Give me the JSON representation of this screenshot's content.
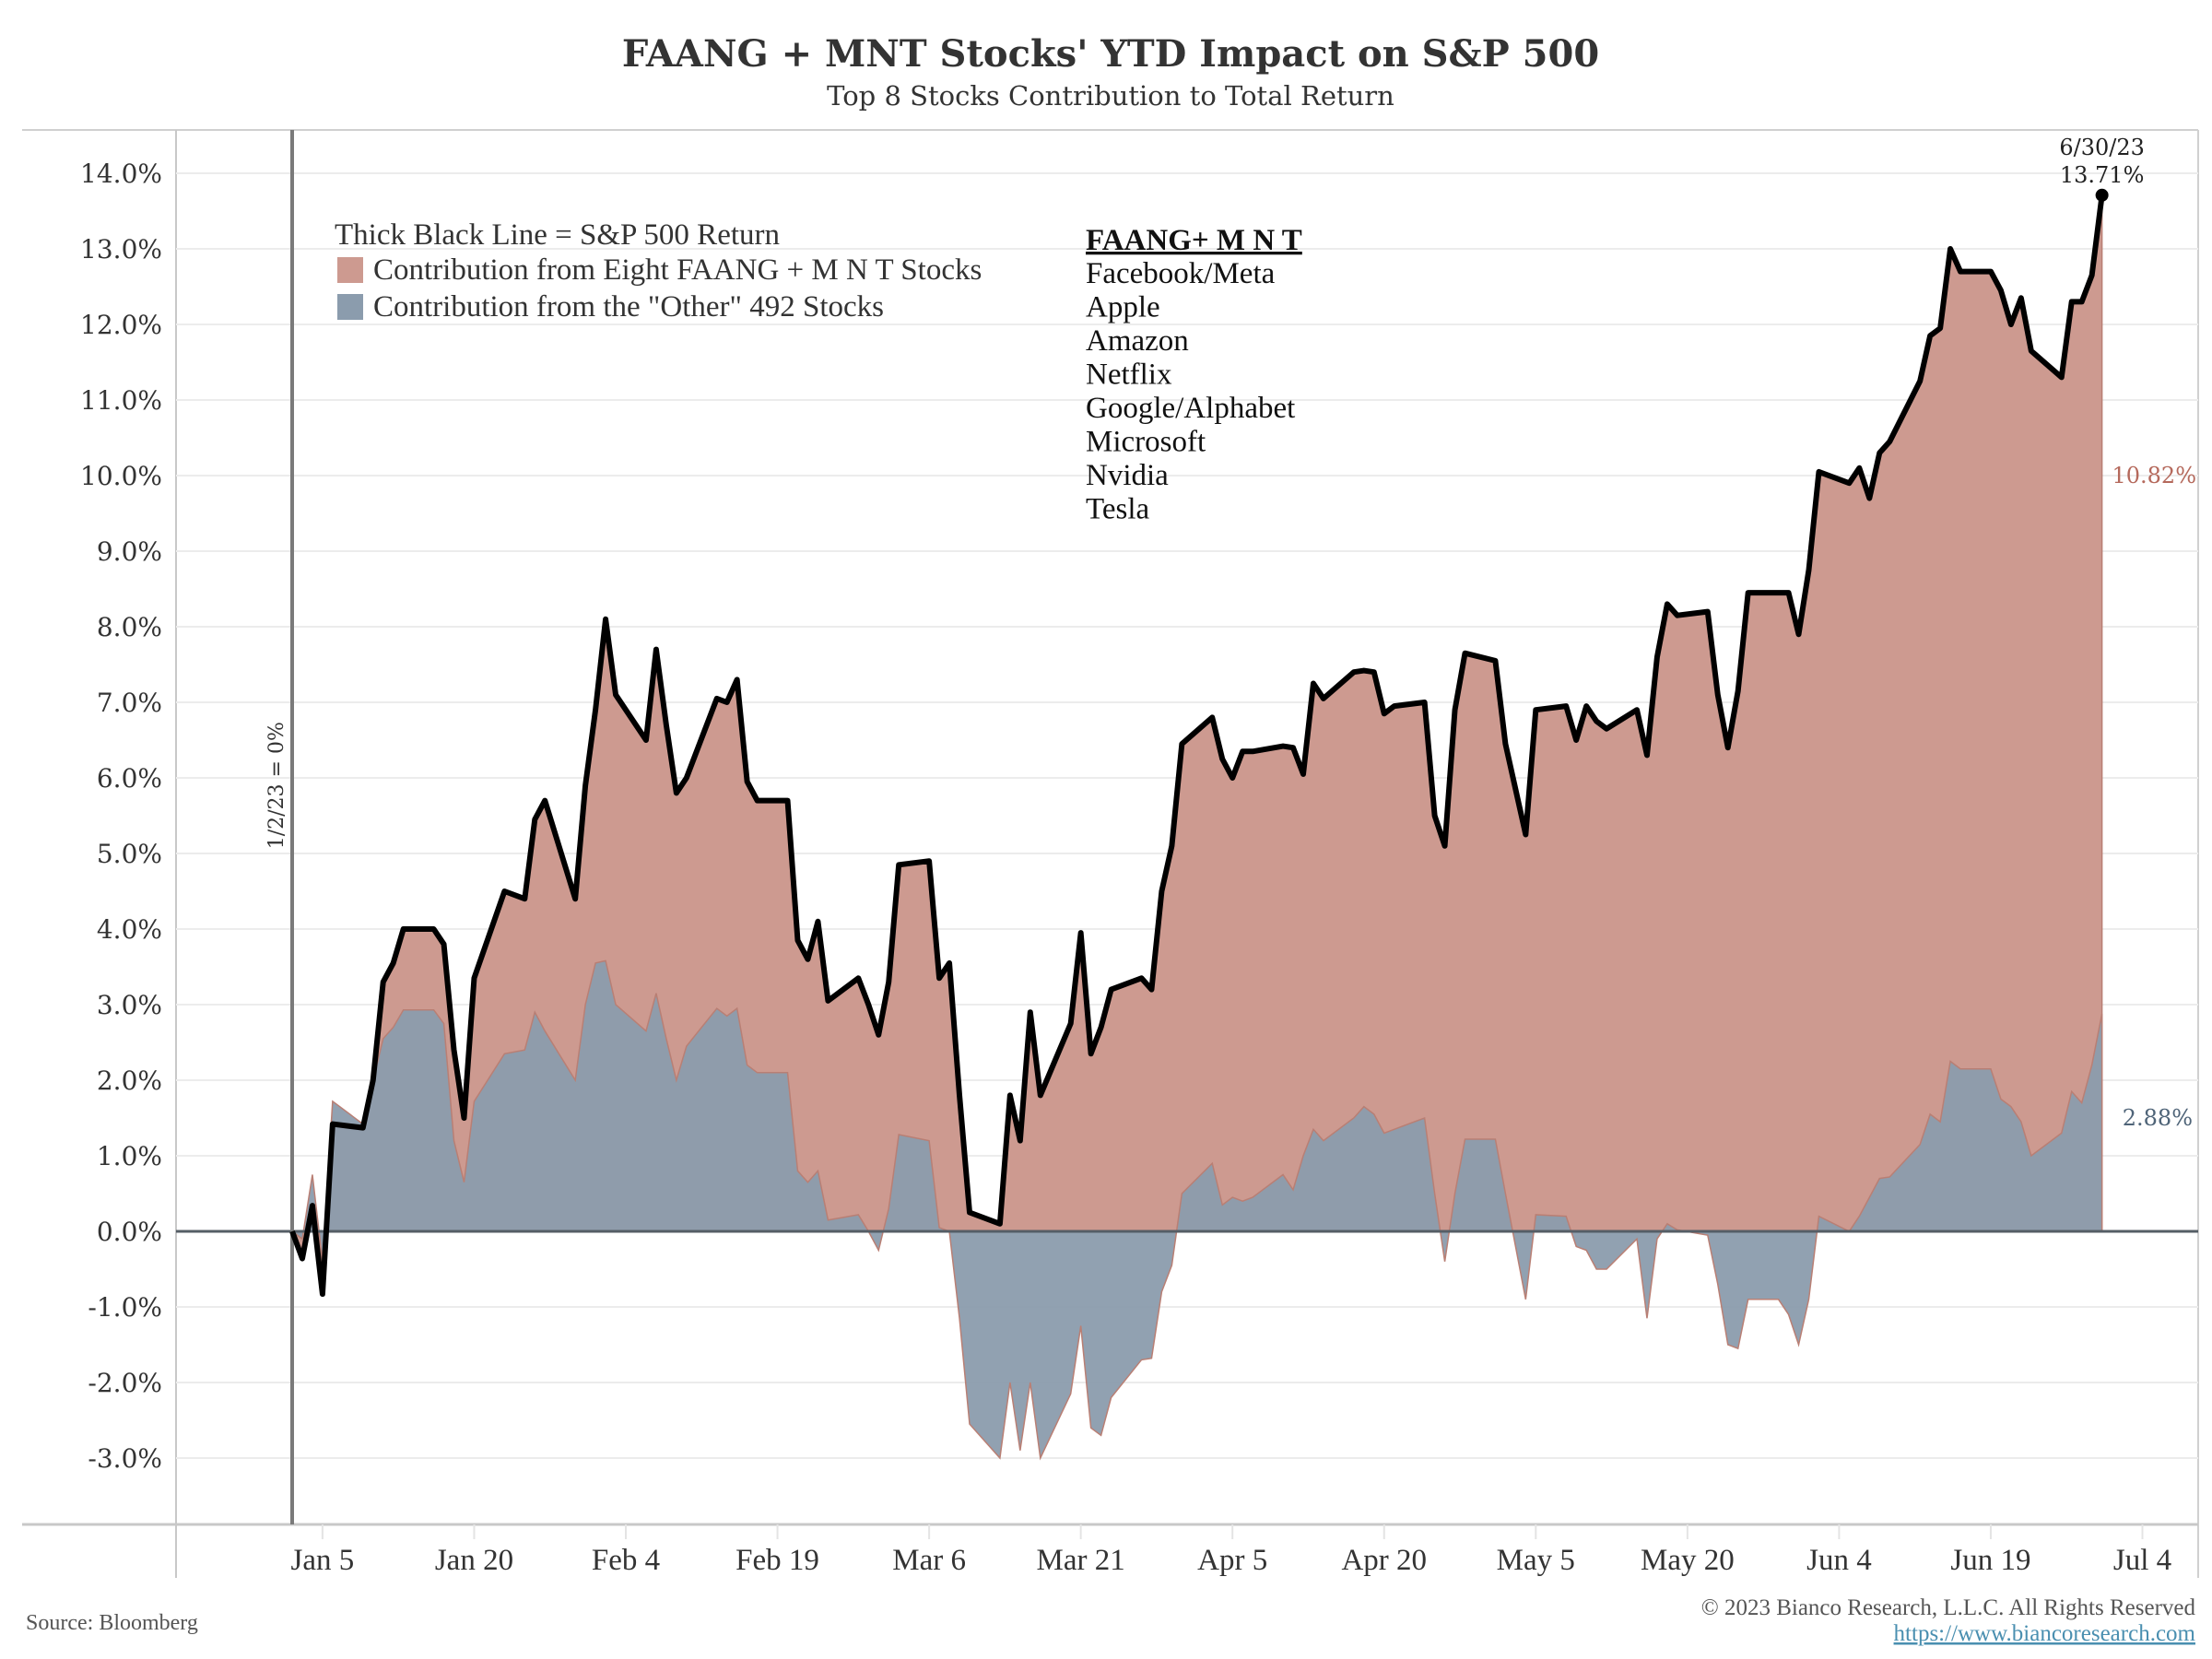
{
  "chart_data": {
    "type": "area",
    "title": "FAANG + MNT Stocks' YTD Impact on S&P 500",
    "subtitle": "Top 8 Stocks Contribution to Total Return",
    "x_unit": "days since 1/2/23",
    "xlim": [
      -17,
      186
    ],
    "ylim": [
      -3.8,
      14.6
    ],
    "y_ticks": [
      14,
      13,
      12,
      11,
      10,
      9,
      8,
      7,
      6,
      5,
      4,
      3,
      2,
      1,
      0,
      -1,
      -2,
      -3
    ],
    "y_tick_labels": [
      "14.0%",
      "13.0%",
      "12.0%",
      "11.0%",
      "10.0%",
      "9.0%",
      "8.0%",
      "7.0%",
      "6.0%",
      "5.0%",
      "4.0%",
      "3.0%",
      "2.0%",
      "1.0%",
      "0.0%",
      "-1.0%",
      "-2.0%",
      "-3.0%"
    ],
    "x_ticks": [
      3,
      18,
      33,
      48,
      63,
      78,
      93,
      108,
      123,
      138,
      153,
      168,
      183
    ],
    "x_tick_labels": [
      "Jan 5",
      "Jan 20",
      "Feb 4",
      "Feb 19",
      "Mar 6",
      "Mar 21",
      "Apr 5",
      "Apr 20",
      "May 5",
      "May 20",
      "Jun 4",
      "Jun 19",
      "Jul 4"
    ],
    "grid": true,
    "x": [
      0,
      1,
      2,
      3,
      4,
      7,
      8,
      9,
      10,
      11,
      14,
      15,
      16,
      17,
      18,
      21,
      23,
      24,
      25,
      28,
      29,
      30,
      31,
      32,
      35,
      36,
      37,
      38,
      39,
      42,
      43,
      44,
      45,
      46,
      49,
      50,
      51,
      52,
      53,
      56,
      57,
      58,
      59,
      60,
      63,
      64,
      65,
      66,
      67,
      70,
      71,
      72,
      73,
      74,
      77,
      78,
      79,
      80,
      81,
      84,
      85,
      86,
      87,
      88,
      91,
      92,
      93,
      94,
      95,
      98,
      99,
      100,
      101,
      102,
      105,
      106,
      107,
      108,
      109,
      112,
      113,
      114,
      115,
      116,
      119,
      120,
      121,
      122,
      123,
      126,
      127,
      128,
      129,
      130,
      133,
      134,
      135,
      136,
      137,
      140,
      141,
      142,
      143,
      144,
      147,
      148,
      149,
      150,
      151,
      154,
      155,
      156,
      157,
      158,
      161,
      162,
      163,
      164,
      165,
      168,
      169,
      170,
      171,
      172,
      175,
      176,
      177,
      178,
      179
    ],
    "series": [
      {
        "name": "S&P 500 Return",
        "color": "#000000",
        "values": [
          0,
          -0.36,
          0.34,
          -0.83,
          1.42,
          1.37,
          2.0,
          3.3,
          3.55,
          4.0,
          4.0,
          3.8,
          2.4,
          1.5,
          3.35,
          4.5,
          4.4,
          5.45,
          5.7,
          4.4,
          5.9,
          6.9,
          8.1,
          7.1,
          6.5,
          7.7,
          6.7,
          5.8,
          6.0,
          7.05,
          7.0,
          7.3,
          5.95,
          5.7,
          5.7,
          3.85,
          3.6,
          4.1,
          3.05,
          3.35,
          3.0,
          2.6,
          3.3,
          4.85,
          4.9,
          3.35,
          3.55,
          1.8,
          0.25,
          0.1,
          1.8,
          1.2,
          2.9,
          1.8,
          2.75,
          3.95,
          2.35,
          2.7,
          3.2,
          3.35,
          3.2,
          4.5,
          5.1,
          6.45,
          6.8,
          6.25,
          6.0,
          6.35,
          6.35,
          6.42,
          6.4,
          6.05,
          7.25,
          7.05,
          7.4,
          7.42,
          7.4,
          6.85,
          6.95,
          7.0,
          5.5,
          5.1,
          6.9,
          7.65,
          7.55,
          6.45,
          5.85,
          5.25,
          6.9,
          6.95,
          6.5,
          6.95,
          6.75,
          6.65,
          6.9,
          6.3,
          7.6,
          8.3,
          8.15,
          8.2,
          7.1,
          6.4,
          7.15,
          8.45,
          8.45,
          8.45,
          7.9,
          8.75,
          10.05,
          9.9,
          10.1,
          9.7,
          10.3,
          10.45,
          11.25,
          11.85,
          11.95,
          13.0,
          12.7,
          12.7,
          12.45,
          12.0,
          12.35,
          11.65,
          11.3,
          12.3,
          12.3,
          12.65,
          13.71
        ]
      },
      {
        "name": "Contribution from the \"Other\" 492 Stocks",
        "color": "#8b9cad",
        "values": [
          0,
          -0.1,
          0.75,
          -0.4,
          1.72,
          1.42,
          2.0,
          2.55,
          2.7,
          2.93,
          2.93,
          2.75,
          1.2,
          0.65,
          1.72,
          2.35,
          2.4,
          2.9,
          2.65,
          2.0,
          3.0,
          3.55,
          3.58,
          3.0,
          2.65,
          3.15,
          2.55,
          2.0,
          2.45,
          2.95,
          2.85,
          2.95,
          2.2,
          2.1,
          2.1,
          0.8,
          0.65,
          0.8,
          0.15,
          0.22,
          0.0,
          -0.25,
          0.3,
          1.28,
          1.2,
          0.05,
          0.0,
          -1.15,
          -2.55,
          -3.0,
          -2.0,
          -2.9,
          -2.0,
          -3.0,
          -2.15,
          -1.25,
          -2.6,
          -2.7,
          -2.2,
          -1.7,
          -1.68,
          -0.8,
          -0.45,
          0.5,
          0.9,
          0.35,
          0.45,
          0.4,
          0.45,
          0.75,
          0.55,
          1.0,
          1.35,
          1.2,
          1.5,
          1.65,
          1.55,
          1.3,
          1.35,
          1.5,
          0.5,
          -0.4,
          0.5,
          1.22,
          1.22,
          0.5,
          -0.2,
          -0.9,
          0.22,
          0.2,
          -0.2,
          -0.25,
          -0.5,
          -0.5,
          -0.1,
          -1.15,
          -0.1,
          0.1,
          0.02,
          -0.05,
          -0.7,
          -1.5,
          -1.55,
          -0.9,
          -0.9,
          -1.1,
          -1.5,
          -0.9,
          0.2,
          0.0,
          0.2,
          0.45,
          0.7,
          0.72,
          1.15,
          1.55,
          1.45,
          2.25,
          2.15,
          2.15,
          1.75,
          1.65,
          1.45,
          1.0,
          1.3,
          1.85,
          1.7,
          2.2,
          2.88
        ]
      }
    ],
    "faang_color": "#cd9a90",
    "legend": {
      "line_label": "Thick Black Line = S&P 500 Return",
      "faang_label": "Contribution from Eight FAANG + M N T Stocks",
      "other_label": "Contribution from the \"Other\" 492 Stocks"
    },
    "stock_list": {
      "heading": "FAANG+ M N T",
      "items": [
        "Facebook/Meta",
        "Apple",
        "Amazon",
        "Netflix",
        "Google/Alphabet",
        "Microsoft",
        "Nvidia",
        "Tesla"
      ]
    },
    "annotations": {
      "start_line": "1/2/23 = 0%",
      "end_date": "6/30/23",
      "end_value": "13.71%",
      "faang_end": "10.82%",
      "other_end": "2.88%"
    }
  },
  "footer": {
    "source": "Source: Bloomberg",
    "copyright": "© 2023 Bianco Research, L.L.C. All Rights Reserved",
    "url": "https://www.biancoresearch.com"
  }
}
